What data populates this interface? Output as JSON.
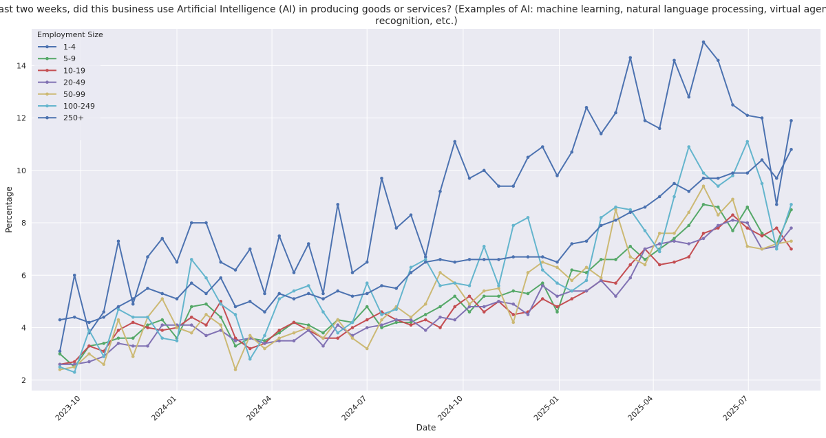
{
  "chart_data": {
    "type": "line",
    "title_line1": "In the last two weeks, did this business use Artificial Intelligence (AI) in producing goods or services? (Examples of AI: machine learning, natural language processing, virtual agents, voice",
    "title_line2": "recognition, etc.)",
    "xlabel": "Date",
    "ylabel": "Percentage",
    "legend_title": "Employment Size",
    "legend_position": "top-left",
    "grid": true,
    "ylim": [
      1.6,
      15.4
    ],
    "xlim": [
      "2023-08-15",
      "2025-09-08"
    ],
    "y_ticks": [
      2,
      4,
      6,
      8,
      10,
      12,
      14
    ],
    "x_ticks": [
      {
        "date": "2023-10-01",
        "label": "2023-10"
      },
      {
        "date": "2024-01-01",
        "label": "2024-01"
      },
      {
        "date": "2024-04-01",
        "label": "2024-04"
      },
      {
        "date": "2024-07-01",
        "label": "2024-07"
      },
      {
        "date": "2024-10-01",
        "label": "2024-10"
      },
      {
        "date": "2025-01-01",
        "label": "2025-01"
      },
      {
        "date": "2025-04-01",
        "label": "2025-04"
      },
      {
        "date": "2025-07-01",
        "label": "2025-07"
      }
    ],
    "x": [
      "2023-09-11",
      "2023-09-25",
      "2023-10-09",
      "2023-10-23",
      "2023-11-06",
      "2023-11-20",
      "2023-12-04",
      "2023-12-18",
      "2024-01-01",
      "2024-01-15",
      "2024-01-29",
      "2024-02-12",
      "2024-02-26",
      "2024-03-11",
      "2024-03-25",
      "2024-04-08",
      "2024-04-22",
      "2024-05-06",
      "2024-05-20",
      "2024-06-03",
      "2024-06-17",
      "2024-07-01",
      "2024-07-15",
      "2024-07-29",
      "2024-08-12",
      "2024-08-26",
      "2024-09-09",
      "2024-09-23",
      "2024-10-07",
      "2024-10-21",
      "2024-11-04",
      "2024-11-18",
      "2024-12-02",
      "2024-12-16",
      "2024-12-30",
      "2025-01-13",
      "2025-01-27",
      "2025-02-10",
      "2025-02-24",
      "2025-03-10",
      "2025-03-24",
      "2025-04-07",
      "2025-04-21",
      "2025-05-05",
      "2025-05-19",
      "2025-06-02",
      "2025-06-16",
      "2025-06-30",
      "2025-07-14",
      "2025-07-28",
      "2025-08-11"
    ],
    "series": [
      {
        "name": "1-4",
        "color": "#4c72b0",
        "values": [
          3.1,
          6.0,
          3.8,
          4.6,
          7.3,
          4.9,
          6.7,
          7.4,
          6.5,
          8.0,
          8.0,
          6.5,
          6.2,
          7.0,
          5.3,
          7.5,
          6.1,
          7.2,
          5.3,
          8.7,
          6.1,
          6.5,
          9.7,
          7.8,
          8.3,
          6.7,
          9.2,
          11.1,
          9.7,
          10.0,
          9.4,
          9.4,
          10.5,
          10.9,
          9.8,
          10.7,
          12.4,
          11.4,
          12.2,
          14.3,
          11.9,
          11.6,
          14.2,
          12.8,
          14.9,
          14.2,
          12.5,
          12.1,
          12.0,
          8.7,
          11.9
        ]
      },
      {
        "name": "5-9",
        "color": "#55a868",
        "values": [
          3.0,
          2.5,
          3.3,
          3.4,
          3.6,
          3.6,
          4.1,
          4.3,
          3.6,
          4.8,
          4.9,
          4.4,
          3.3,
          3.6,
          3.5,
          3.8,
          4.2,
          4.1,
          3.8,
          4.3,
          4.2,
          4.8,
          4.0,
          4.2,
          4.2,
          4.5,
          4.8,
          5.2,
          4.6,
          5.2,
          5.2,
          5.4,
          5.3,
          5.7,
          4.6,
          6.2,
          6.1,
          6.6,
          6.6,
          7.1,
          6.6,
          7.0,
          7.4,
          7.9,
          8.7,
          8.6,
          7.7,
          8.6,
          7.6,
          7.2,
          8.5
        ]
      },
      {
        "name": "10-19",
        "color": "#c44e52",
        "values": [
          2.6,
          2.7,
          3.3,
          3.1,
          3.9,
          4.2,
          4.0,
          3.9,
          4.0,
          4.4,
          4.1,
          5.0,
          3.6,
          3.2,
          3.4,
          3.9,
          4.2,
          3.9,
          3.6,
          3.6,
          4.0,
          4.3,
          4.6,
          4.3,
          4.1,
          4.3,
          4.0,
          4.8,
          5.2,
          4.6,
          5.0,
          4.5,
          4.6,
          5.1,
          4.8,
          5.1,
          5.4,
          5.8,
          5.7,
          6.4,
          7.0,
          6.4,
          6.5,
          6.7,
          7.6,
          7.8,
          8.3,
          7.8,
          7.5,
          7.8,
          7.0
        ]
      },
      {
        "name": "20-49",
        "color": "#8172b3",
        "values": [
          2.6,
          2.6,
          2.7,
          2.9,
          3.4,
          3.3,
          3.3,
          4.1,
          4.1,
          4.1,
          3.7,
          3.9,
          3.5,
          3.6,
          3.4,
          3.5,
          3.5,
          3.9,
          3.3,
          4.1,
          3.7,
          4.0,
          4.1,
          4.3,
          4.3,
          3.9,
          4.4,
          4.3,
          4.8,
          4.8,
          5.0,
          4.9,
          4.5,
          5.6,
          5.2,
          5.4,
          5.4,
          5.8,
          5.2,
          5.9,
          7.0,
          7.2,
          7.3,
          7.2,
          7.4,
          7.9,
          8.1,
          8.0,
          7.0,
          7.1,
          7.8
        ]
      },
      {
        "name": "50-99",
        "color": "#ccb974",
        "values": [
          2.4,
          2.5,
          3.0,
          2.6,
          4.3,
          2.9,
          4.4,
          5.1,
          4.0,
          3.8,
          4.5,
          4.1,
          2.4,
          3.7,
          3.2,
          3.6,
          3.8,
          4.0,
          3.6,
          4.3,
          3.6,
          3.2,
          4.3,
          4.8,
          4.4,
          4.9,
          6.1,
          5.7,
          4.9,
          5.4,
          5.5,
          4.2,
          6.1,
          6.5,
          6.3,
          5.8,
          6.3,
          5.9,
          8.5,
          6.7,
          6.4,
          7.6,
          7.6,
          8.4,
          9.4,
          8.3,
          8.9,
          7.1,
          7.0,
          7.2,
          7.3
        ]
      },
      {
        "name": "100-249",
        "color": "#64b5cd",
        "values": [
          2.5,
          2.3,
          3.9,
          2.9,
          4.7,
          4.4,
          4.4,
          3.6,
          3.5,
          6.6,
          5.9,
          4.9,
          4.5,
          2.8,
          3.7,
          5.1,
          5.4,
          5.6,
          4.6,
          3.8,
          4.2,
          5.7,
          4.5,
          4.7,
          6.3,
          6.6,
          5.6,
          5.7,
          5.6,
          7.1,
          5.6,
          7.9,
          8.2,
          6.2,
          5.7,
          5.4,
          5.8,
          8.2,
          8.6,
          8.5,
          7.7,
          6.9,
          9.0,
          10.9,
          9.9,
          9.4,
          9.8,
          11.1,
          9.5,
          7.0,
          8.7
        ]
      },
      {
        "name": "250+",
        "color": "#4c72b0",
        "values": [
          4.3,
          4.4,
          4.2,
          4.4,
          4.8,
          5.1,
          5.5,
          5.3,
          5.1,
          5.7,
          5.3,
          5.9,
          4.8,
          5.0,
          4.6,
          5.3,
          5.1,
          5.3,
          5.1,
          5.4,
          5.2,
          5.3,
          5.6,
          5.5,
          6.1,
          6.5,
          6.6,
          6.5,
          6.6,
          6.6,
          6.6,
          6.7,
          6.7,
          6.7,
          6.5,
          7.2,
          7.3,
          7.9,
          8.1,
          8.4,
          8.6,
          9.0,
          9.5,
          9.2,
          9.7,
          9.7,
          9.9,
          9.9,
          10.4,
          9.7,
          10.8
        ]
      }
    ]
  }
}
